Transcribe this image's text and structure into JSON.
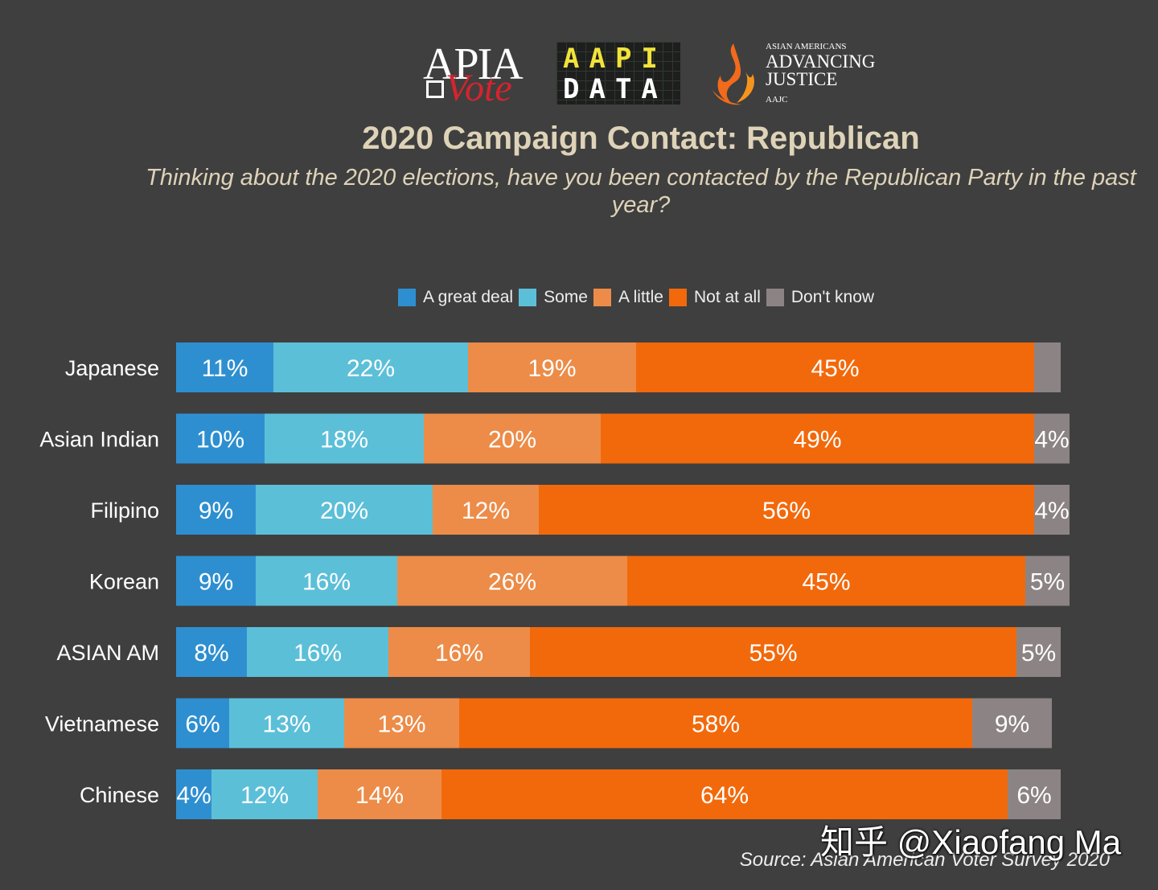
{
  "logos": {
    "apia_text": "APIA",
    "vote_text": "Vote",
    "aapi_top": "AAPI",
    "aapi_bottom": "DATA",
    "aajc_line1": "ASIAN AMERICANS",
    "aajc_line2": "ADVANCING",
    "aajc_line3": "JUSTICE",
    "aajc_line4": "AAJC",
    "colors": {
      "apia_red": "#d7232d",
      "aapi_yellow": "#f2e33b",
      "aajc_orange": "#f26a1b"
    }
  },
  "chart_data": {
    "type": "bar",
    "orientation": "horizontal",
    "stacked": true,
    "title": "2020 Campaign Contact: Republican",
    "subtitle": "Thinking about the 2020 elections, have you been contacted by the Republican Party in the past year?",
    "categories": [
      "Japanese",
      "Asian Indian",
      "Filipino",
      "Korean",
      "ASIAN AM",
      "Vietnamese",
      "Chinese"
    ],
    "series": [
      {
        "name": "A great deal",
        "color": "#2e8fd0",
        "values": [
          11,
          10,
          9,
          9,
          8,
          6,
          4
        ],
        "labels": [
          "11%",
          "10%",
          "9%",
          "9%",
          "8%",
          "6%",
          "4%"
        ]
      },
      {
        "name": "Some",
        "color": "#5cbfd8",
        "values": [
          22,
          18,
          20,
          16,
          16,
          13,
          12
        ],
        "labels": [
          "22%",
          "18%",
          "20%",
          "16%",
          "16%",
          "13%",
          "12%"
        ]
      },
      {
        "name": "A little",
        "color": "#ec8c48",
        "values": [
          19,
          20,
          12,
          26,
          16,
          13,
          14
        ],
        "labels": [
          "19%",
          "20%",
          "12%",
          "26%",
          "16%",
          "13%",
          "14%"
        ]
      },
      {
        "name": "Not at all",
        "color": "#f2690b",
        "values": [
          45,
          49,
          56,
          45,
          55,
          58,
          64
        ],
        "labels": [
          "45%",
          "49%",
          "56%",
          "45%",
          "55%",
          "58%",
          "64%"
        ]
      },
      {
        "name": "Don't know",
        "color": "#8c8484",
        "values": [
          3,
          4,
          4,
          5,
          5,
          9,
          6
        ],
        "labels": [
          "",
          "4%",
          "4%",
          "5%",
          "5%",
          "9%",
          "6%"
        ]
      }
    ],
    "xlim": [
      0,
      100
    ],
    "legend_position": "top",
    "source": "Source: Asian American Voter Survey 2020"
  },
  "watermark": "知乎 @Xiaofang Ma"
}
